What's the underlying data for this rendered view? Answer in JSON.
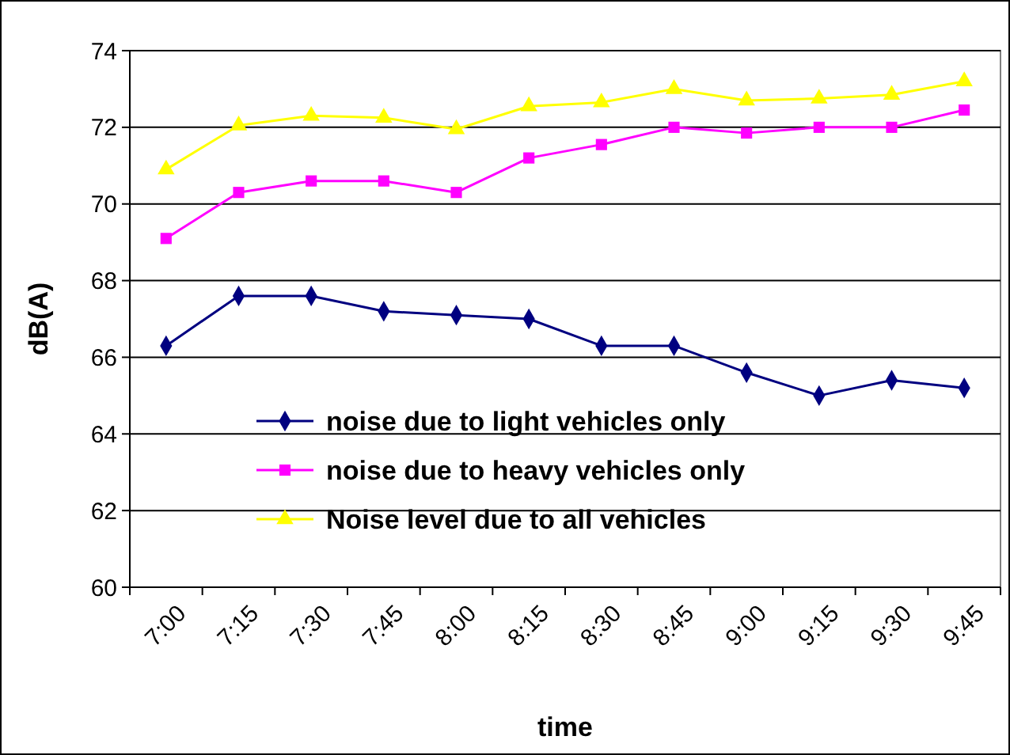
{
  "chart_data": {
    "type": "line",
    "xlabel": "time",
    "ylabel": "dB(A)",
    "categories": [
      "7:00",
      "7:15",
      "7:30",
      "7:45",
      "8:00",
      "8:15",
      "8:30",
      "8:45",
      "9:00",
      "9:15",
      "9:30",
      "9:45"
    ],
    "ylim": [
      60,
      74
    ],
    "yticks": [
      60,
      62,
      64,
      66,
      68,
      70,
      72,
      74
    ],
    "grid": "y",
    "legend": "bottom",
    "series": [
      {
        "name": "noise due to light vehicles only",
        "color": "#000080",
        "marker": "diamond",
        "values": [
          66.3,
          67.6,
          67.6,
          67.2,
          67.1,
          67.0,
          66.3,
          66.3,
          65.6,
          65.0,
          65.4,
          65.2
        ]
      },
      {
        "name": "noise due to heavy vehicles only",
        "color": "#ff00ff",
        "marker": "square",
        "values": [
          69.1,
          70.3,
          70.6,
          70.6,
          70.3,
          71.2,
          71.55,
          72.0,
          71.85,
          72.0,
          72.0,
          72.45
        ]
      },
      {
        "name": "Noise level due to all vehicles",
        "color": "#ffff00",
        "marker": "triangle",
        "values": [
          70.9,
          72.05,
          72.3,
          72.25,
          71.95,
          72.55,
          72.65,
          73.0,
          72.7,
          72.75,
          72.85,
          73.2
        ]
      }
    ]
  }
}
